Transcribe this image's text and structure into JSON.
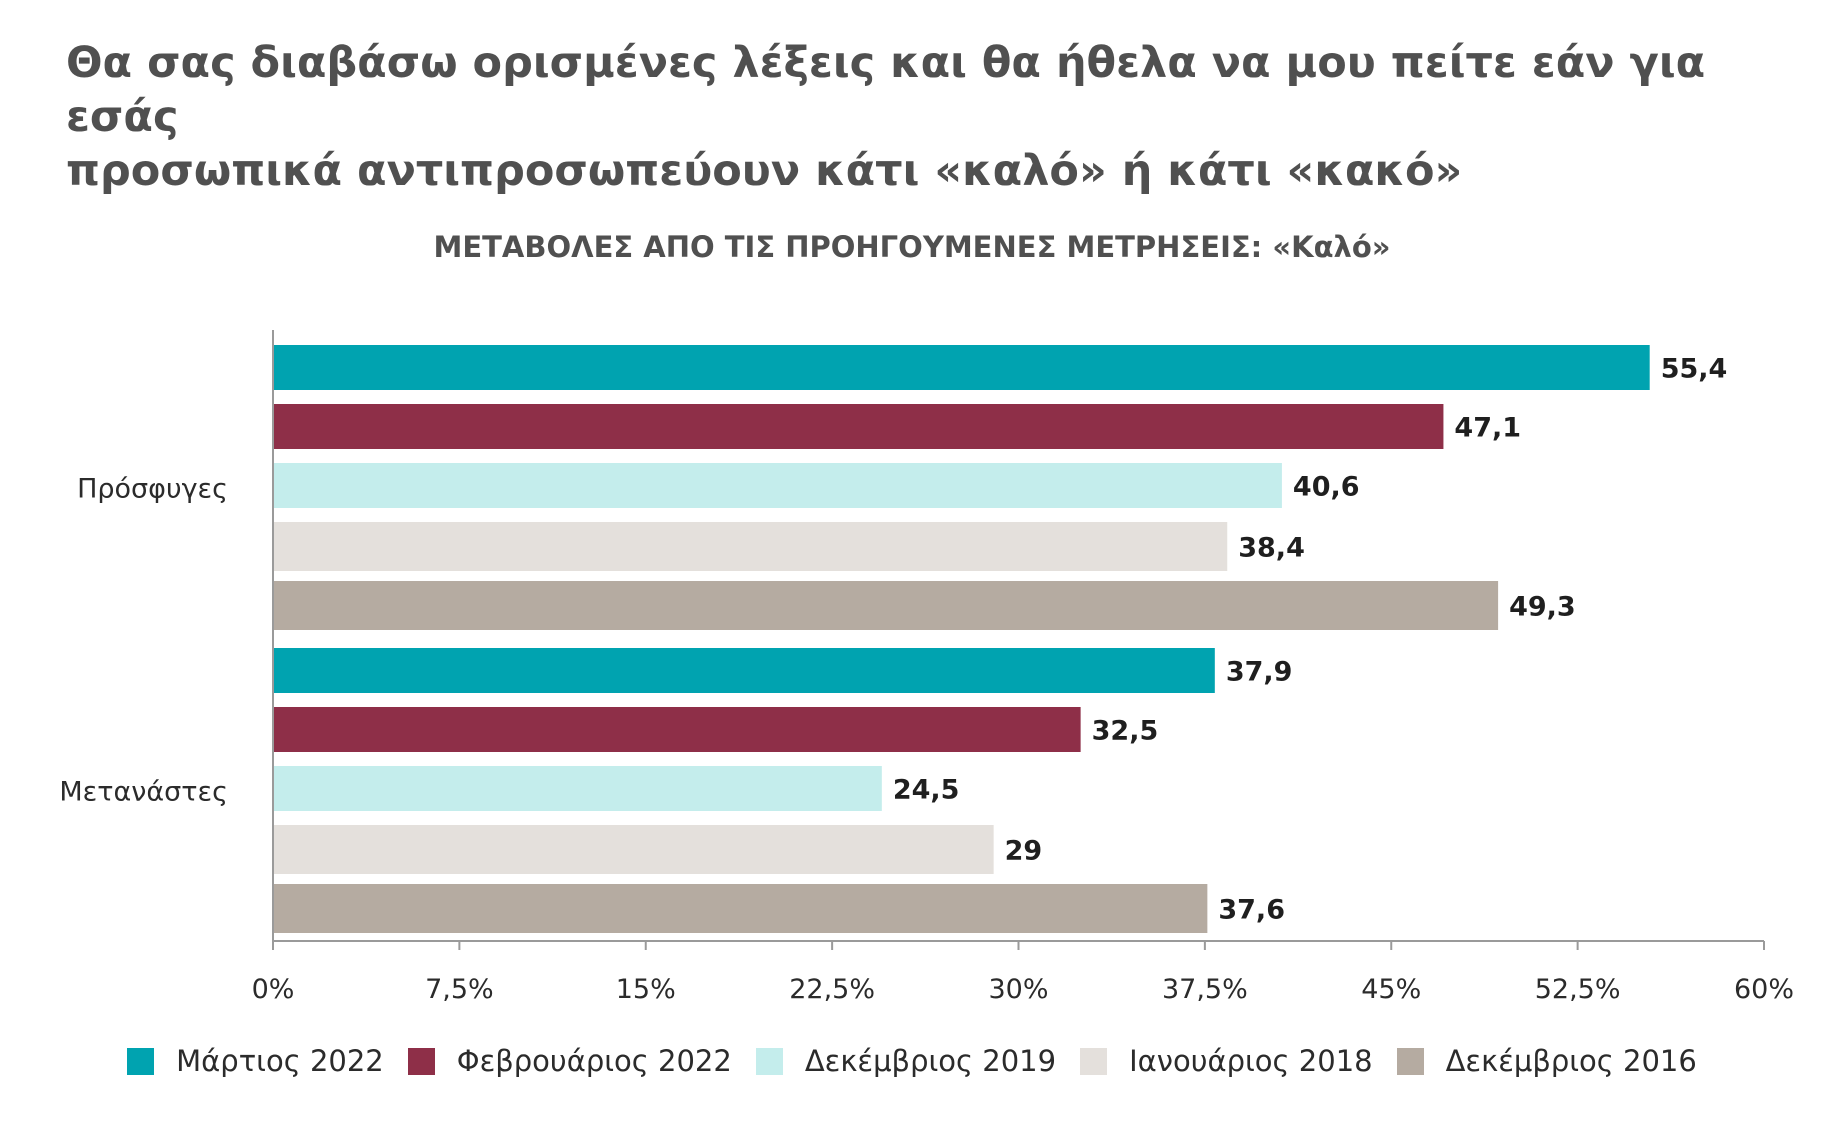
{
  "heading": {
    "line1": "Θα σας διαβάσω ορισμένες λέξεις και θα ήθελα να μου πείτε εάν για εσάς",
    "line2": "προσωπικά αντιπροσωπεύουν κάτι «καλό» ή κάτι «κακό»"
  },
  "chart_data": {
    "type": "bar",
    "orientation": "horizontal",
    "title": "ΜΕΤΑΒΟΛΕΣ ΑΠΟ ΤΙΣ ΠΡΟΗΓΟΥΜΕΝΕΣ ΜΕΤΡΗΣΕΙΣ: «Καλό»",
    "categories": [
      "Πρόσφυγες",
      "Μετανάστες"
    ],
    "series": [
      {
        "name": "Μάρτιος 2022",
        "color": "#00A3B0",
        "values": [
          55.4,
          37.9
        ],
        "labels": [
          "55,4",
          "37,9"
        ]
      },
      {
        "name": "Φεβρουάριος 2022",
        "color": "#8E2F48",
        "values": [
          47.1,
          32.5
        ],
        "labels": [
          "47,1",
          "32,5"
        ]
      },
      {
        "name": "Δεκέμβριος 2019",
        "color": "#C4EDEC",
        "values": [
          40.6,
          24.5
        ],
        "labels": [
          "40,6",
          "24,5"
        ]
      },
      {
        "name": "Ιανουάριος 2018",
        "color": "#E4E0DC",
        "values": [
          38.4,
          29
        ],
        "labels": [
          "38,4",
          "29"
        ]
      },
      {
        "name": "Δεκέμβριος 2016",
        "color": "#B5ABA1",
        "values": [
          49.3,
          37.6
        ],
        "labels": [
          "49,3",
          "37,6"
        ]
      }
    ],
    "xlim": [
      0,
      60
    ],
    "ticks": [
      0,
      7.5,
      15,
      22.5,
      30,
      37.5,
      45,
      52.5,
      60
    ],
    "tick_labels": [
      "0%",
      "7,5%",
      "15%",
      "22,5%",
      "30%",
      "37,5%",
      "45%",
      "52,5%",
      "60%"
    ],
    "grid": false,
    "legend_position": "bottom"
  }
}
